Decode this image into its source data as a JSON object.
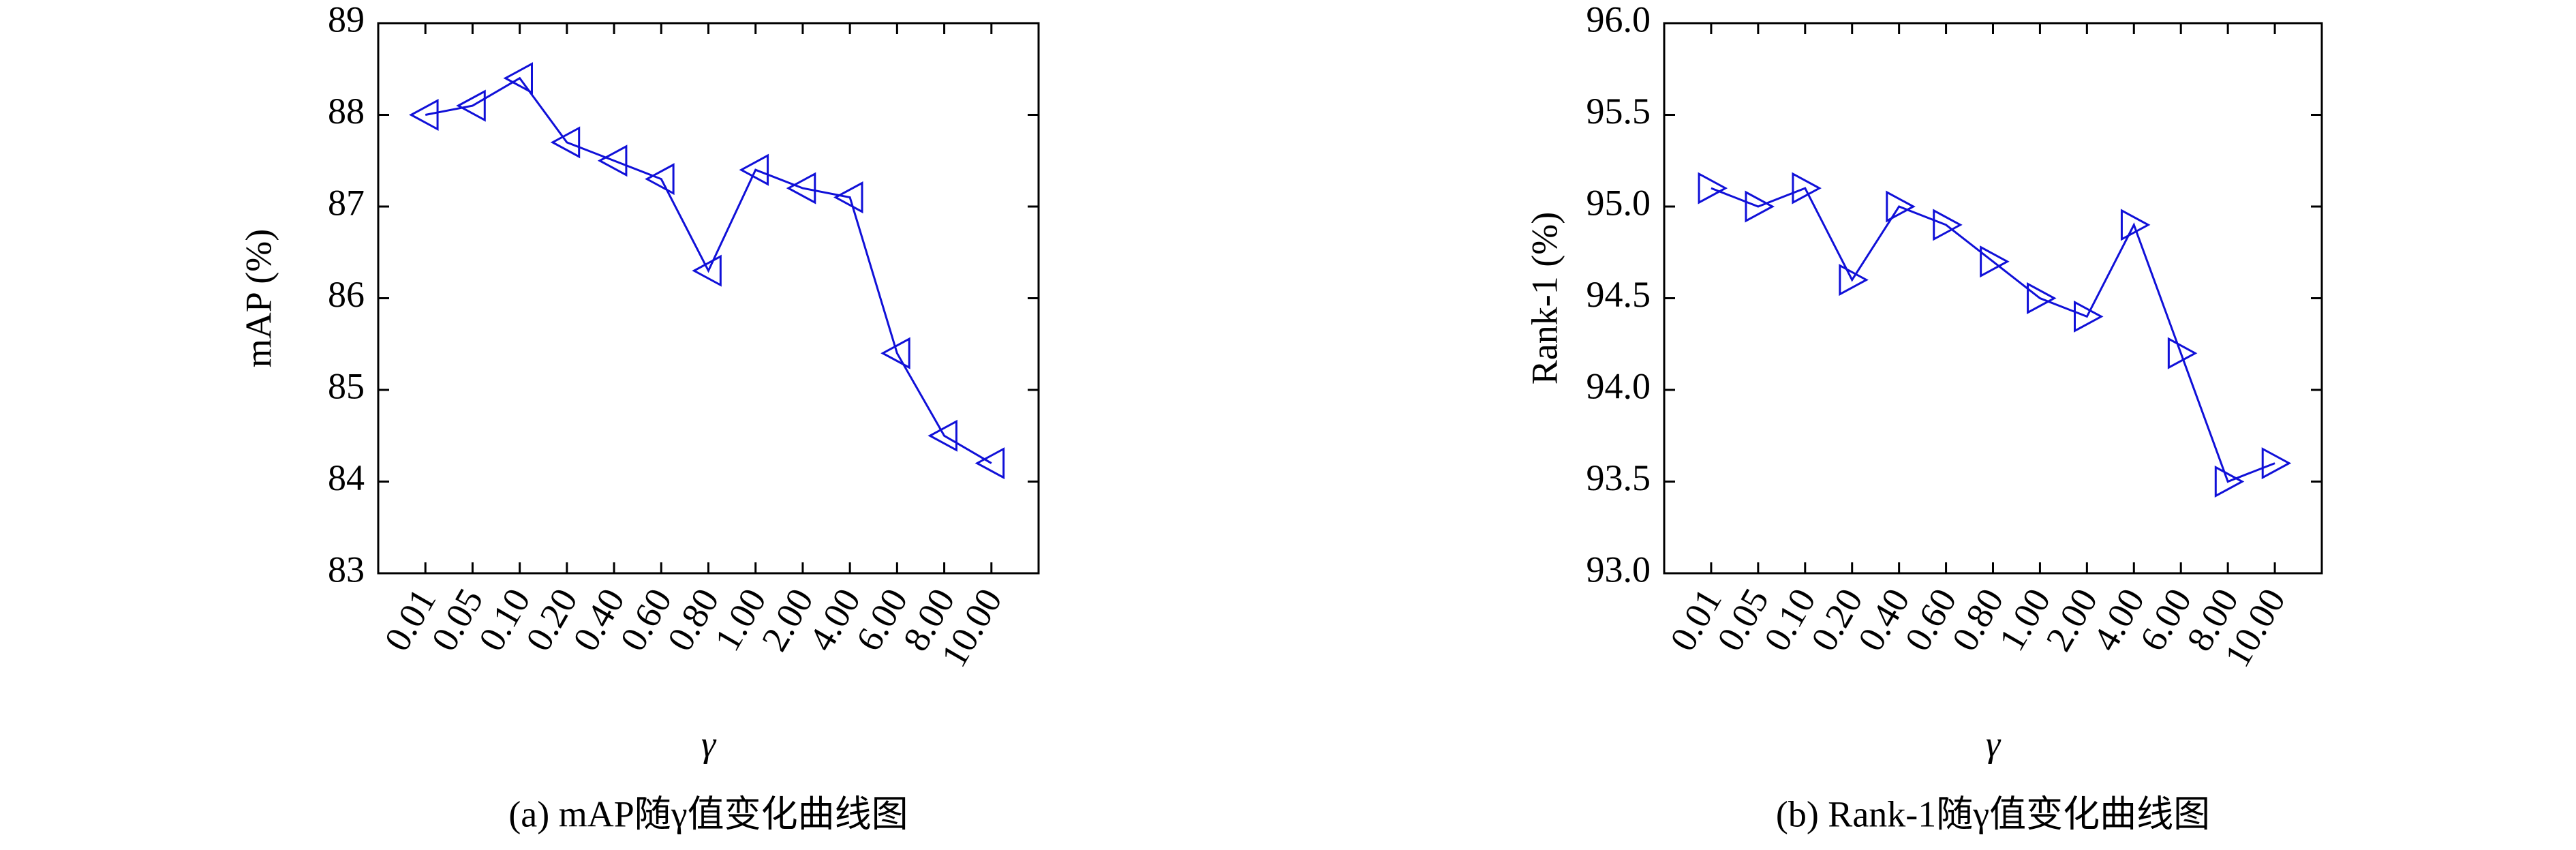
{
  "chart_data": [
    {
      "type": "line",
      "marker": "triangle-left",
      "color": "#1010d8",
      "xlabel": "γ",
      "ylabel": "mAP (%)",
      "caption": "(a) mAP随γ值变化曲线图",
      "categories": [
        "0.01",
        "0.05",
        "0.10",
        "0.20",
        "0.40",
        "0.60",
        "0.80",
        "1.00",
        "2.00",
        "4.00",
        "6.00",
        "8.00",
        "10.00"
      ],
      "values": [
        88.0,
        88.1,
        88.4,
        87.7,
        87.5,
        87.3,
        86.3,
        87.4,
        87.2,
        87.1,
        85.4,
        84.5,
        84.2
      ],
      "ylim": [
        83,
        89
      ],
      "yticks": [
        83,
        84,
        85,
        86,
        87,
        88,
        89
      ]
    },
    {
      "type": "line",
      "marker": "triangle-right",
      "color": "#1010d8",
      "xlabel": "γ",
      "ylabel": "Rank-1 (%)",
      "caption": "(b) Rank-1随γ值变化曲线图",
      "categories": [
        "0.01",
        "0.05",
        "0.10",
        "0.20",
        "0.40",
        "0.60",
        "0.80",
        "1.00",
        "2.00",
        "4.00",
        "6.00",
        "8.00",
        "10.00"
      ],
      "values": [
        95.1,
        95.0,
        95.1,
        94.6,
        95.0,
        94.9,
        94.7,
        94.5,
        94.4,
        94.9,
        94.2,
        93.5,
        93.6
      ],
      "ylim": [
        93,
        96
      ],
      "yticks": [
        {
          "value": 93,
          "label": "93.0"
        },
        {
          "value": 93.5,
          "label": "93.5"
        },
        {
          "value": 94,
          "label": "94.0"
        },
        {
          "value": 94.5,
          "label": "94.5"
        },
        {
          "value": 95,
          "label": "95.0"
        },
        {
          "value": 95.5,
          "label": "95.5"
        },
        {
          "value": 96,
          "label": "96.0"
        }
      ]
    }
  ]
}
